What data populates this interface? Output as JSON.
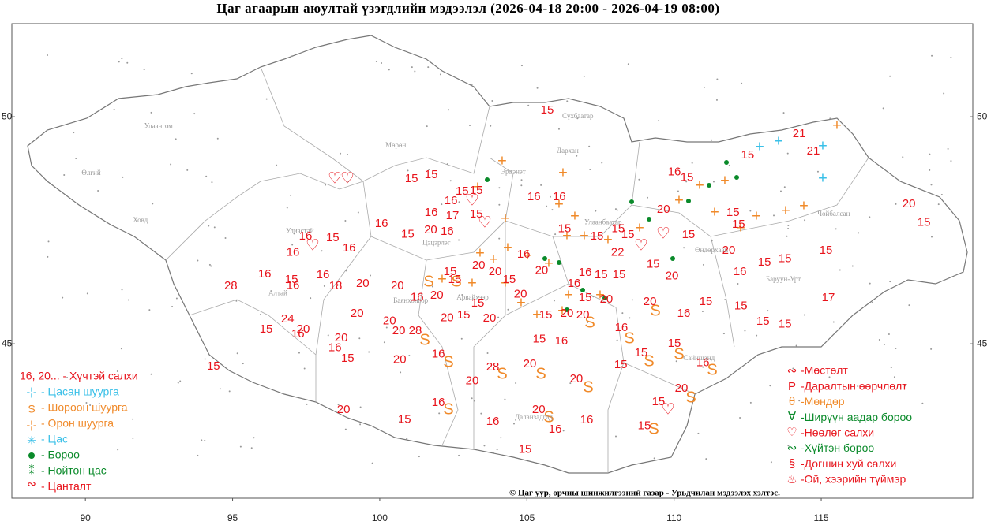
{
  "title": "Цаг агаарын аюултай үзэгдлийн мэдээлэл (2026-04-18 20:00 - 2026-04-19 08:00)",
  "map": {
    "xlim": [
      87.5,
      120.15
    ],
    "ylim": [
      41.6,
      52.05
    ],
    "xticks": [
      90,
      95,
      100,
      105,
      110,
      115
    ],
    "yticks": [
      45,
      50
    ],
    "stations": [
      {
        "lon": 105.69,
        "lat": 50.14,
        "value": 15
      },
      {
        "lon": 114.25,
        "lat": 49.62,
        "value": 21
      },
      {
        "lon": 114.73,
        "lat": 49.24,
        "value": 21
      },
      {
        "lon": 112.5,
        "lat": 49.15,
        "value": 15
      },
      {
        "lon": 110.01,
        "lat": 48.78,
        "value": 16
      },
      {
        "lon": 110.44,
        "lat": 48.66,
        "value": 15
      },
      {
        "lon": 101.08,
        "lat": 48.63,
        "value": 15
      },
      {
        "lon": 101.75,
        "lat": 48.72,
        "value": 15
      },
      {
        "lon": 105.24,
        "lat": 48.23,
        "value": 16
      },
      {
        "lon": 106.1,
        "lat": 48.23,
        "value": 16
      },
      {
        "lon": 102.8,
        "lat": 48.35,
        "value": 15
      },
      {
        "lon": 103.28,
        "lat": 48.37,
        "value": 15
      },
      {
        "lon": 102.42,
        "lat": 48.14,
        "value": 16
      },
      {
        "lon": 101.75,
        "lat": 47.88,
        "value": 16
      },
      {
        "lon": 102.47,
        "lat": 47.81,
        "value": 17
      },
      {
        "lon": 103.28,
        "lat": 47.85,
        "value": 15
      },
      {
        "lon": 100.06,
        "lat": 47.64,
        "value": 16
      },
      {
        "lon": 100.95,
        "lat": 47.41,
        "value": 15
      },
      {
        "lon": 101.73,
        "lat": 47.5,
        "value": 20
      },
      {
        "lon": 102.29,
        "lat": 47.47,
        "value": 16
      },
      {
        "lon": 106.28,
        "lat": 47.53,
        "value": 15
      },
      {
        "lon": 108.1,
        "lat": 47.53,
        "value": 15
      },
      {
        "lon": 109.64,
        "lat": 47.95,
        "value": 20
      },
      {
        "lon": 112.0,
        "lat": 47.88,
        "value": 15
      },
      {
        "lon": 112.19,
        "lat": 47.62,
        "value": 15
      },
      {
        "lon": 117.98,
        "lat": 48.07,
        "value": 20
      },
      {
        "lon": 118.49,
        "lat": 47.67,
        "value": 15
      },
      {
        "lon": 97.48,
        "lat": 47.36,
        "value": 16
      },
      {
        "lon": 98.4,
        "lat": 47.33,
        "value": 15
      },
      {
        "lon": 98.96,
        "lat": 47.1,
        "value": 16
      },
      {
        "lon": 97.05,
        "lat": 47.01,
        "value": 16
      },
      {
        "lon": 107.38,
        "lat": 47.36,
        "value": 15
      },
      {
        "lon": 108.43,
        "lat": 47.4,
        "value": 15
      },
      {
        "lon": 108.08,
        "lat": 47.01,
        "value": 22
      },
      {
        "lon": 110.49,
        "lat": 47.4,
        "value": 15
      },
      {
        "lon": 111.86,
        "lat": 47.05,
        "value": 20
      },
      {
        "lon": 115.16,
        "lat": 47.05,
        "value": 15
      },
      {
        "lon": 113.07,
        "lat": 46.79,
        "value": 15
      },
      {
        "lon": 113.77,
        "lat": 46.87,
        "value": 15
      },
      {
        "lon": 103.36,
        "lat": 46.72,
        "value": 20
      },
      {
        "lon": 104.89,
        "lat": 46.96,
        "value": 16
      },
      {
        "lon": 102.39,
        "lat": 46.58,
        "value": 15
      },
      {
        "lon": 102.55,
        "lat": 46.41,
        "value": 15
      },
      {
        "lon": 103.92,
        "lat": 46.58,
        "value": 20
      },
      {
        "lon": 104.4,
        "lat": 46.41,
        "value": 15
      },
      {
        "lon": 105.5,
        "lat": 46.61,
        "value": 20
      },
      {
        "lon": 106.98,
        "lat": 46.56,
        "value": 16
      },
      {
        "lon": 107.52,
        "lat": 46.51,
        "value": 15
      },
      {
        "lon": 108.13,
        "lat": 46.51,
        "value": 15
      },
      {
        "lon": 109.29,
        "lat": 46.75,
        "value": 15
      },
      {
        "lon": 109.93,
        "lat": 46.49,
        "value": 20
      },
      {
        "lon": 112.24,
        "lat": 46.58,
        "value": 16
      },
      {
        "lon": 96.09,
        "lat": 46.53,
        "value": 16
      },
      {
        "lon": 97.0,
        "lat": 46.41,
        "value": 15
      },
      {
        "lon": 97.05,
        "lat": 46.28,
        "value": 16
      },
      {
        "lon": 98.07,
        "lat": 46.51,
        "value": 16
      },
      {
        "lon": 98.5,
        "lat": 46.27,
        "value": 18
      },
      {
        "lon": 99.42,
        "lat": 46.32,
        "value": 20
      },
      {
        "lon": 94.94,
        "lat": 46.27,
        "value": 28
      },
      {
        "lon": 100.6,
        "lat": 46.27,
        "value": 20
      },
      {
        "lon": 101.27,
        "lat": 46.02,
        "value": 16
      },
      {
        "lon": 101.94,
        "lat": 46.06,
        "value": 20
      },
      {
        "lon": 103.33,
        "lat": 45.89,
        "value": 15
      },
      {
        "lon": 104.78,
        "lat": 46.09,
        "value": 20
      },
      {
        "lon": 106.6,
        "lat": 46.32,
        "value": 16
      },
      {
        "lon": 106.98,
        "lat": 46.01,
        "value": 15
      },
      {
        "lon": 107.7,
        "lat": 45.97,
        "value": 20
      },
      {
        "lon": 109.18,
        "lat": 45.92,
        "value": 20
      },
      {
        "lon": 111.08,
        "lat": 45.92,
        "value": 15
      },
      {
        "lon": 112.27,
        "lat": 45.83,
        "value": 15
      },
      {
        "lon": 115.24,
        "lat": 46.01,
        "value": 17
      },
      {
        "lon": 99.23,
        "lat": 45.66,
        "value": 20
      },
      {
        "lon": 100.33,
        "lat": 45.5,
        "value": 20
      },
      {
        "lon": 102.29,
        "lat": 45.57,
        "value": 20
      },
      {
        "lon": 102.85,
        "lat": 45.63,
        "value": 15
      },
      {
        "lon": 103.73,
        "lat": 45.56,
        "value": 20
      },
      {
        "lon": 105.64,
        "lat": 45.63,
        "value": 15
      },
      {
        "lon": 106.36,
        "lat": 45.66,
        "value": 20
      },
      {
        "lon": 106.9,
        "lat": 45.63,
        "value": 20
      },
      {
        "lon": 110.33,
        "lat": 45.66,
        "value": 16
      },
      {
        "lon": 113.02,
        "lat": 45.49,
        "value": 15
      },
      {
        "lon": 113.77,
        "lat": 45.43,
        "value": 15
      },
      {
        "lon": 96.14,
        "lat": 45.31,
        "value": 15
      },
      {
        "lon": 96.87,
        "lat": 45.54,
        "value": 24
      },
      {
        "lon": 97.4,
        "lat": 45.31,
        "value": 20
      },
      {
        "lon": 97.22,
        "lat": 45.21,
        "value": 16
      },
      {
        "lon": 100.65,
        "lat": 45.28,
        "value": 20
      },
      {
        "lon": 101.21,
        "lat": 45.28,
        "value": 28
      },
      {
        "lon": 105.42,
        "lat": 45.1,
        "value": 15
      },
      {
        "lon": 106.17,
        "lat": 45.05,
        "value": 16
      },
      {
        "lon": 108.21,
        "lat": 45.35,
        "value": 16
      },
      {
        "lon": 98.69,
        "lat": 45.12,
        "value": 20
      },
      {
        "lon": 98.48,
        "lat": 44.91,
        "value": 16
      },
      {
        "lon": 98.91,
        "lat": 44.67,
        "value": 15
      },
      {
        "lon": 100.68,
        "lat": 44.65,
        "value": 20
      },
      {
        "lon": 101.99,
        "lat": 44.77,
        "value": 16
      },
      {
        "lon": 108.88,
        "lat": 44.79,
        "value": 15
      },
      {
        "lon": 110.01,
        "lat": 45.0,
        "value": 15
      },
      {
        "lon": 108.19,
        "lat": 44.53,
        "value": 15
      },
      {
        "lon": 110.98,
        "lat": 44.58,
        "value": 16
      },
      {
        "lon": 103.84,
        "lat": 44.48,
        "value": 28
      },
      {
        "lon": 105.1,
        "lat": 44.55,
        "value": 20
      },
      {
        "lon": 103.14,
        "lat": 44.18,
        "value": 20
      },
      {
        "lon": 106.68,
        "lat": 44.22,
        "value": 20
      },
      {
        "lon": 110.25,
        "lat": 44.01,
        "value": 20
      },
      {
        "lon": 94.35,
        "lat": 44.5,
        "value": 15
      },
      {
        "lon": 98.77,
        "lat": 43.54,
        "value": 20
      },
      {
        "lon": 101.99,
        "lat": 43.7,
        "value": 16
      },
      {
        "lon": 100.84,
        "lat": 43.33,
        "value": 15
      },
      {
        "lon": 103.84,
        "lat": 43.28,
        "value": 16
      },
      {
        "lon": 105.4,
        "lat": 43.54,
        "value": 20
      },
      {
        "lon": 105.96,
        "lat": 43.11,
        "value": 16
      },
      {
        "lon": 107.03,
        "lat": 43.32,
        "value": 16
      },
      {
        "lon": 109.47,
        "lat": 43.72,
        "value": 15
      },
      {
        "lon": 108.99,
        "lat": 43.19,
        "value": 15
      },
      {
        "lon": 104.94,
        "lat": 42.67,
        "value": 15
      }
    ],
    "places": [
      {
        "name": "Улаангом",
        "lon": 92.0,
        "lat": 49.79
      },
      {
        "name": "Өлгий",
        "lon": 89.87,
        "lat": 48.75
      },
      {
        "name": "Ховд",
        "lon": 91.61,
        "lat": 47.71
      },
      {
        "name": "Мөрөн",
        "lon": 100.19,
        "lat": 49.36
      },
      {
        "name": "Улиастай",
        "lon": 96.81,
        "lat": 47.48
      },
      {
        "name": "Алтай",
        "lon": 96.22,
        "lat": 46.11
      },
      {
        "name": "Цэцэрлэг",
        "lon": 101.45,
        "lat": 47.22
      },
      {
        "name": "Баянхонгор",
        "lon": 100.46,
        "lat": 45.94
      },
      {
        "name": "Арвайхээр",
        "lon": 102.61,
        "lat": 46.01
      },
      {
        "name": "Эрдэнэт",
        "lon": 104.11,
        "lat": 48.78
      },
      {
        "name": "Сүхбаатар",
        "lon": 106.2,
        "lat": 50.0
      },
      {
        "name": "Дархан",
        "lon": 106.01,
        "lat": 49.24
      },
      {
        "name": "Улаанбаатар",
        "lon": 106.95,
        "lat": 47.67
      },
      {
        "name": "Даланзадгад",
        "lon": 104.59,
        "lat": 43.37
      },
      {
        "name": "Сайншанд",
        "lon": 110.31,
        "lat": 44.67
      },
      {
        "name": "Өндөрхаан",
        "lon": 110.71,
        "lat": 47.05
      },
      {
        "name": "Баруун-Урт",
        "lon": 113.12,
        "lat": 46.41
      },
      {
        "name": "Чойбалсан",
        "lon": 114.87,
        "lat": 47.85
      }
    ]
  },
  "legend_left": [
    "16, 20... - Хүчтэй салхи",
    "- Цасан шуурга",
    "- Шороон шуурга",
    "- Орон шуурга",
    "- Цас",
    "- Бороо",
    "- Нойтон цас",
    "- Цанталт"
  ],
  "legend_right": [
    "-Мөстөлт",
    "-Даралтын өөрчлөлт",
    "-Мөндөр",
    "-Ширүүн аадар бороо",
    "-Нөөлөг салхи",
    "-Хүйтэн бороо",
    "-Догшин хуй салхи",
    "-Ой, хээрийн түймэр"
  ],
  "credit": "© Цаг уур, орчны шинжилгээний газар - Урьдчилан мэдээлэх хэлтэс."
}
